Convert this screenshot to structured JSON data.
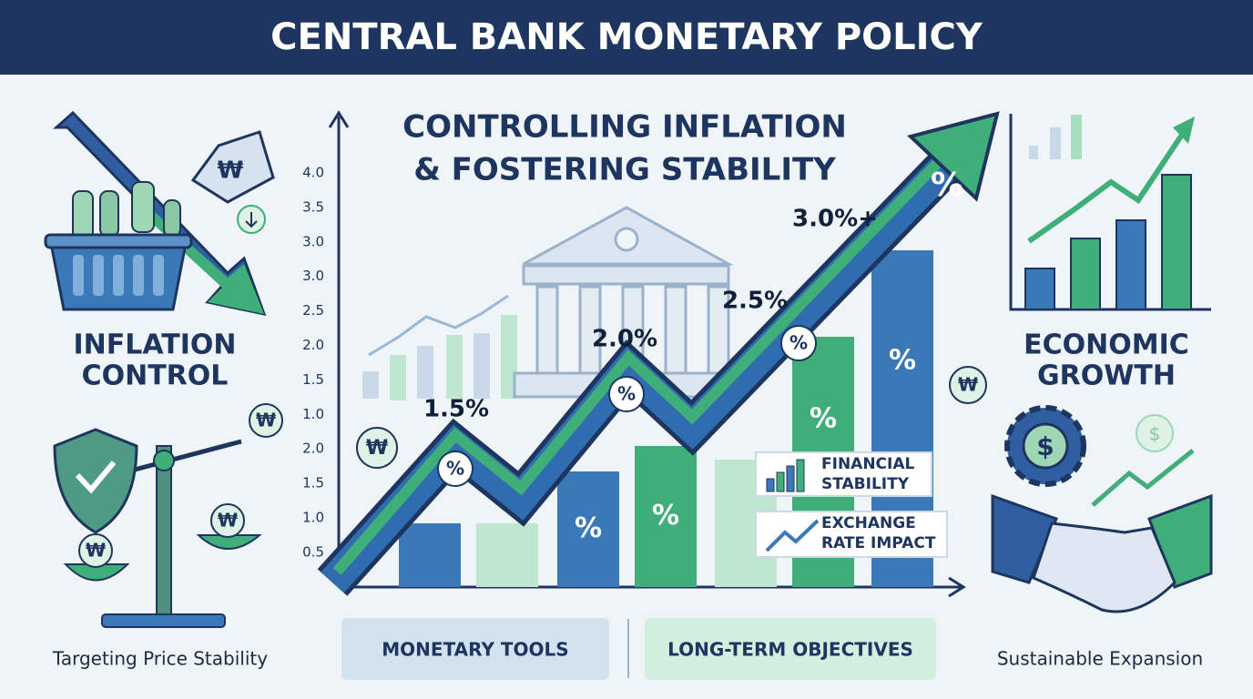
{
  "header": {
    "title": "CENTRAL BANK MONETARY POLICY"
  },
  "left": {
    "title_lines": [
      "INFLATION",
      "CONTROL"
    ],
    "caption": "Targeting Price Stability",
    "currency": "₩"
  },
  "center": {
    "title_lines": [
      "CONTROLLING INFLATION",
      "& FOSTERING STABILITY"
    ],
    "axis_labels": [
      "4.0",
      "3.5",
      "3.0",
      "3.0",
      "2.5",
      "2.0",
      "1.5",
      "1.0",
      "2.0",
      "1.5",
      "1.0",
      "0.5"
    ],
    "rate_labels": [
      "1.5%",
      "2.0%",
      "2.5%",
      "3.0%+"
    ],
    "percent_symbol": "%",
    "callouts": [
      {
        "lines": [
          "FINANCIAL",
          "STABILITY"
        ]
      },
      {
        "lines": [
          "EXCHANGE",
          "RATE IMPACT"
        ]
      }
    ],
    "bottom_boxes": [
      "MONETARY TOOLS",
      "LONG-TERM OBJECTIVES"
    ]
  },
  "right": {
    "title_lines": [
      "ECONOMIC",
      "GROWTH"
    ],
    "caption": "Sustainable Expansion",
    "currency": "$"
  }
}
